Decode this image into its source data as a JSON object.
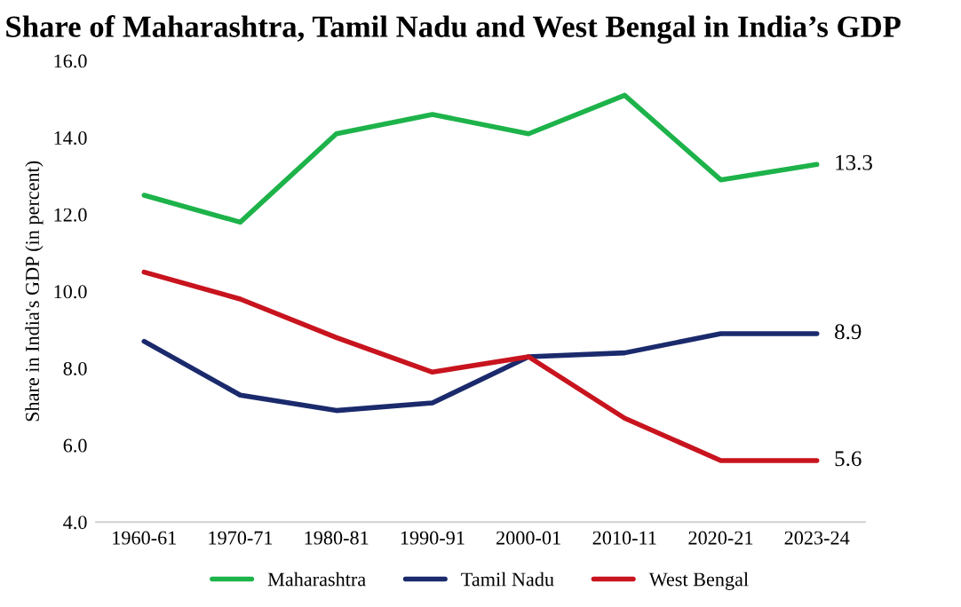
{
  "chart_data": {
    "type": "line",
    "title": "Share of Maharashtra, Tamil Nadu and West Bengal in India’s GDP",
    "ylabel": "Share in India's GDP (in percent)",
    "categories": [
      "1960-61",
      "1970-71",
      "1980-81",
      "1990-91",
      "2000-01",
      "2010-11",
      "2020-21",
      "2023-24"
    ],
    "series": [
      {
        "name": "Maharashtra",
        "color": "#1db34a",
        "values": [
          12.5,
          11.8,
          14.1,
          14.6,
          14.1,
          15.1,
          12.9,
          13.3
        ],
        "value_labels": [
          null,
          null,
          null,
          null,
          null,
          null,
          null,
          "13.3"
        ]
      },
      {
        "name": "Tamil Nadu",
        "color": "#1a2a6c",
        "values": [
          8.7,
          7.3,
          6.9,
          7.1,
          8.3,
          8.4,
          8.9,
          8.9
        ],
        "value_labels": [
          null,
          null,
          null,
          null,
          null,
          null,
          null,
          "8.9"
        ]
      },
      {
        "name": "West Bengal",
        "color": "#c8141e",
        "values": [
          10.5,
          9.8,
          8.8,
          7.9,
          8.3,
          6.7,
          5.6,
          5.6
        ],
        "value_labels": [
          null,
          null,
          null,
          null,
          null,
          null,
          null,
          "5.6"
        ]
      }
    ],
    "ylim": [
      4.0,
      16.0
    ],
    "yticks": [
      {
        "value": 4,
        "label": "4.0"
      },
      {
        "value": 6,
        "label": "6.0"
      },
      {
        "value": 8,
        "label": "8.0"
      },
      {
        "value": 10,
        "label": "10.0"
      },
      {
        "value": 12,
        "label": "12.0"
      },
      {
        "value": 14,
        "label": "14.0"
      },
      {
        "value": 16,
        "label": "16.0"
      }
    ],
    "grid": false,
    "legend": "bottom",
    "marker": "none",
    "line_style": "solid"
  }
}
